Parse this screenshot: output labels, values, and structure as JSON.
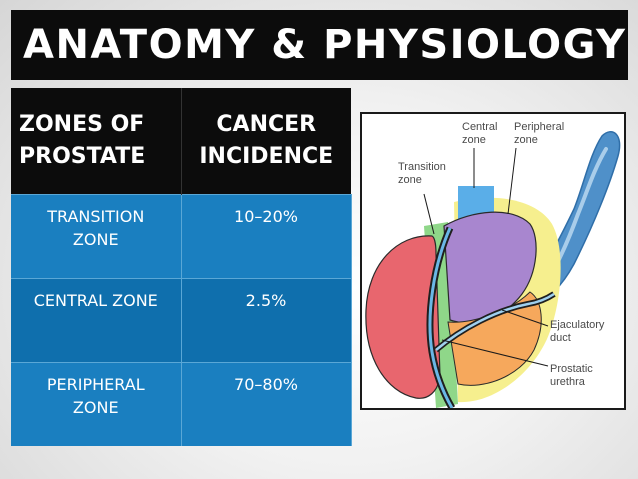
{
  "slide": {
    "title": "ANATOMY & PHYSIOLOGY"
  },
  "table": {
    "headers": [
      {
        "line1": "ZONES OF",
        "line2": "PROSTATE"
      },
      {
        "line1": "CANCER",
        "line2": "INCIDENCE"
      }
    ],
    "rows": [
      {
        "zone_line1": "TRANSITION",
        "zone_line2": "ZONE",
        "incidence": "10–20%"
      },
      {
        "zone_line1": "CENTRAL ZONE",
        "zone_line2": "",
        "incidence": "2.5%"
      },
      {
        "zone_line1": "PERIPHERAL",
        "zone_line2": "ZONE",
        "incidence": "70–80%"
      }
    ]
  },
  "diagram": {
    "labels": {
      "central": {
        "line1": "Central",
        "line2": "zone"
      },
      "peripheral": {
        "line1": "Peripheral",
        "line2": "zone"
      },
      "transition": {
        "line1": "Transition",
        "line2": "zone"
      },
      "ejaculatory": {
        "line1": "Ejaculatory",
        "line2": "duct"
      },
      "urethra": {
        "line1": "Prostatic",
        "line2": "urethra"
      }
    },
    "colors": {
      "red_lobe": "#e8666e",
      "purple_zone": "#a886cf",
      "orange_zone": "#f6a85c",
      "yellow_zone": "#f6ef8e",
      "green_zone": "#8fd789",
      "blue_zone": "#5aaee8",
      "seminal_vesicle": "#4f90c9"
    }
  }
}
